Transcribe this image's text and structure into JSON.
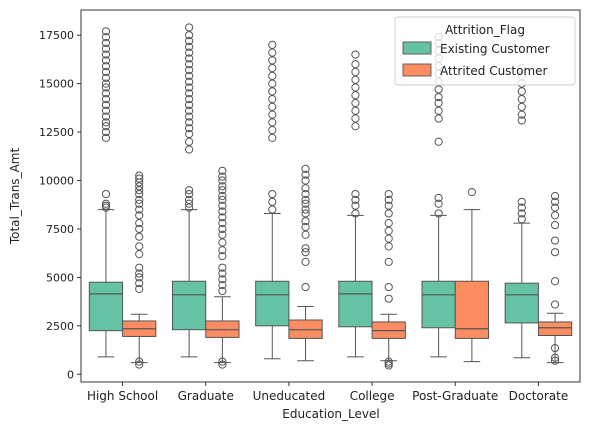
{
  "chart_data": {
    "type": "box",
    "xlabel": "Education_Level",
    "ylabel": "Total_Trans_Amt",
    "ylim": [
      -400,
      18800
    ],
    "yticks": [
      0,
      2500,
      5000,
      7500,
      10000,
      12500,
      15000,
      17500
    ],
    "ytick_labels": [
      "0",
      "2500",
      "5000",
      "7500",
      "10000",
      "12500",
      "15000",
      "17500"
    ],
    "categories": [
      "High School",
      "Graduate",
      "Uneducated",
      "College",
      "Post-Graduate",
      "Doctorate"
    ],
    "legend": {
      "title": "Attrition_Flag",
      "position": "top-right",
      "entries": [
        "Existing Customer",
        "Attrited Customer"
      ]
    },
    "series": [
      {
        "name": "Existing Customer",
        "color": "#66c2a5",
        "boxes": [
          {
            "whislo": 900,
            "q1": 2250,
            "med": 4150,
            "q3": 4750,
            "whishi": 8500,
            "fliers": [
              8600,
              8700,
              8800,
              9300,
              12200,
              12500,
              12800,
              13000,
              13300,
              13600,
              13900,
              14200,
              14500,
              14800,
              15000,
              15300,
              15600,
              15900,
              16200,
              16500,
              16800,
              17100,
              17400,
              17700
            ]
          },
          {
            "whislo": 900,
            "q1": 2300,
            "med": 4100,
            "q3": 4800,
            "whishi": 8500,
            "fliers": [
              8600,
              8800,
              9000,
              9300,
              9500,
              11600,
              12000,
              12400,
              12700,
              13000,
              13300,
              13600,
              13900,
              14200,
              14500,
              14800,
              15100,
              15400,
              15700,
              16000,
              16300,
              16600,
              16900,
              17200,
              17500,
              17900
            ]
          },
          {
            "whislo": 800,
            "q1": 2500,
            "med": 4100,
            "q3": 4800,
            "whishi": 8300,
            "fliers": [
              8500,
              8900,
              9300,
              12200,
              12600,
              13000,
              13400,
              13800,
              14200,
              14600,
              15000,
              15400,
              15800,
              16200,
              16600,
              17000
            ]
          },
          {
            "whislo": 900,
            "q1": 2450,
            "med": 4150,
            "q3": 4800,
            "whishi": 8200,
            "fliers": [
              8300,
              8700,
              9000,
              9300,
              12800,
              13200,
              13600,
              14000,
              14400,
              14800,
              15200,
              15600,
              16000,
              16500
            ]
          },
          {
            "whislo": 900,
            "q1": 2400,
            "med": 4100,
            "q3": 4800,
            "whishi": 8200,
            "fliers": [
              8300,
              8800,
              9100,
              12000,
              13200,
              13600,
              14000,
              14300,
              14700,
              15100,
              15500,
              15900,
              16300,
              16700,
              17100,
              17400
            ]
          },
          {
            "whislo": 850,
            "q1": 2650,
            "med": 4100,
            "q3": 4700,
            "whishi": 7800,
            "fliers": [
              8000,
              8300,
              8600,
              8900,
              13100,
              13400,
              13800,
              14200,
              14600,
              15000,
              15400,
              15800
            ]
          }
        ]
      },
      {
        "name": "Attrited Customer",
        "color": "#fc8d62",
        "boxes": [
          {
            "whislo": 600,
            "q1": 1950,
            "med": 2350,
            "q3": 2750,
            "whishi": 3100,
            "fliers": [
              500,
              650,
              4400,
              4700,
              5000,
              5200,
              5500,
              6200,
              6600,
              7100,
              7500,
              7800,
              8200,
              8500,
              8800,
              9000,
              9300,
              9500,
              9700,
              9900,
              10100,
              10250
            ]
          },
          {
            "whislo": 600,
            "q1": 1900,
            "med": 2300,
            "q3": 2750,
            "whishi": 4000,
            "fliers": [
              500,
              650,
              4300,
              4600,
              4900,
              5200,
              5500,
              6100,
              6400,
              6800,
              7200,
              7500,
              7800,
              8100,
              8400,
              8700,
              9000,
              9200,
              9500,
              9700,
              10000,
              10200,
              10500
            ]
          },
          {
            "whislo": 700,
            "q1": 1850,
            "med": 2300,
            "q3": 2800,
            "whishi": 3500,
            "fliers": [
              4500,
              5800,
              6300,
              6500,
              7200,
              7600,
              7900,
              8300,
              8500,
              8800,
              9000,
              9300,
              9600,
              10000,
              10300,
              10600
            ]
          },
          {
            "whislo": 700,
            "q1": 1850,
            "med": 2250,
            "q3": 2700,
            "whishi": 3100,
            "fliers": [
              450,
              550,
              650,
              3900,
              4500,
              5800,
              6600,
              7000,
              7400,
              7800,
              8300,
              8700,
              9000,
              9300
            ]
          },
          {
            "whislo": 650,
            "q1": 1850,
            "med": 2350,
            "q3": 4800,
            "whishi": 8500,
            "fliers": [
              9400
            ]
          },
          {
            "whislo": 600,
            "q1": 2000,
            "med": 2400,
            "q3": 2700,
            "whishi": 3150,
            "fliers": [
              700,
              850,
              1350,
              3600,
              4800,
              6300,
              6900,
              7700,
              8200,
              8600,
              8900,
              9200
            ]
          }
        ]
      }
    ]
  }
}
